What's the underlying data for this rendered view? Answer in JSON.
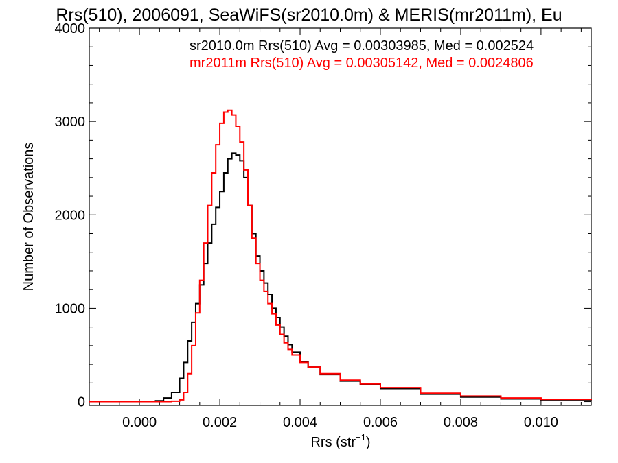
{
  "chart_data": {
    "type": "line",
    "title": "Rrs(510), 2006091, SeaWiFS(sr2010.0m) & MERIS(mr2011m), Eu",
    "xlabel": "Rrs (str",
    "xlabel_sup": "−1",
    "xlabel_close": ")",
    "ylabel": "Number of Observations",
    "xlim": [
      -0.00125,
      0.01125
    ],
    "ylim": [
      -40,
      4000
    ],
    "x_ticks": [
      0.0,
      0.002,
      0.004,
      0.006,
      0.008,
      0.01
    ],
    "x_tick_labels": [
      "0.000",
      "0.002",
      "0.004",
      "0.006",
      "0.008",
      "0.010"
    ],
    "y_ticks": [
      0,
      1000,
      2000,
      3000,
      4000
    ],
    "y_tick_labels": [
      "0",
      "1000",
      "2000",
      "3000",
      "4000"
    ],
    "grid": false,
    "annotations": [
      {
        "text": "sr2010.0m Rrs(510) Avg = 0.00303985, Med = 0.002524",
        "color": "#000000"
      },
      {
        "text": "mr2011m Rrs(510) Avg = 0.00305142, Med = 0.0024806",
        "color": "#ff0000"
      }
    ],
    "series": [
      {
        "color": "#000000",
        "step": true,
        "x": [
          -0.00125,
          0.0,
          0.0004,
          0.0006,
          0.0008,
          0.001,
          0.0011,
          0.0012,
          0.0013,
          0.0014,
          0.0015,
          0.0016,
          0.0017,
          0.0018,
          0.0019,
          0.002,
          0.0021,
          0.0022,
          0.0023,
          0.0024,
          0.0025,
          0.0026,
          0.0027,
          0.0028,
          0.0029,
          0.003,
          0.0031,
          0.0032,
          0.0033,
          0.0034,
          0.0035,
          0.0036,
          0.0037,
          0.0038,
          0.004,
          0.0042,
          0.0045,
          0.005,
          0.0055,
          0.006,
          0.007,
          0.008,
          0.009,
          0.01,
          0.01125
        ],
        "y": [
          0,
          0,
          10,
          40,
          100,
          250,
          420,
          650,
          850,
          1050,
          1250,
          1480,
          1700,
          1900,
          2080,
          2250,
          2450,
          2600,
          2660,
          2640,
          2580,
          2400,
          2100,
          1800,
          1560,
          1400,
          1270,
          1150,
          1000,
          900,
          800,
          700,
          610,
          530,
          430,
          370,
          290,
          220,
          180,
          140,
          80,
          50,
          30,
          20,
          15
        ]
      },
      {
        "color": "#ff0000",
        "step": true,
        "x": [
          -0.00125,
          0.0,
          0.0006,
          0.0008,
          0.001,
          0.0011,
          0.0012,
          0.0013,
          0.0014,
          0.0015,
          0.0016,
          0.0017,
          0.0018,
          0.0019,
          0.002,
          0.0021,
          0.0022,
          0.0023,
          0.0024,
          0.0025,
          0.0026,
          0.0027,
          0.0028,
          0.0029,
          0.003,
          0.0031,
          0.0032,
          0.0033,
          0.0034,
          0.0035,
          0.0036,
          0.0037,
          0.0038,
          0.004,
          0.0042,
          0.0045,
          0.005,
          0.0055,
          0.006,
          0.007,
          0.008,
          0.009,
          0.01,
          0.01125
        ],
        "y": [
          0,
          0,
          0,
          5,
          20,
          100,
          300,
          600,
          950,
          1300,
          1700,
          2100,
          2450,
          2750,
          2980,
          3100,
          3120,
          3070,
          2950,
          2780,
          2480,
          2100,
          1750,
          1480,
          1300,
          1180,
          1050,
          940,
          820,
          720,
          630,
          560,
          500,
          420,
          370,
          300,
          230,
          190,
          150,
          90,
          60,
          40,
          25,
          18
        ]
      }
    ]
  }
}
